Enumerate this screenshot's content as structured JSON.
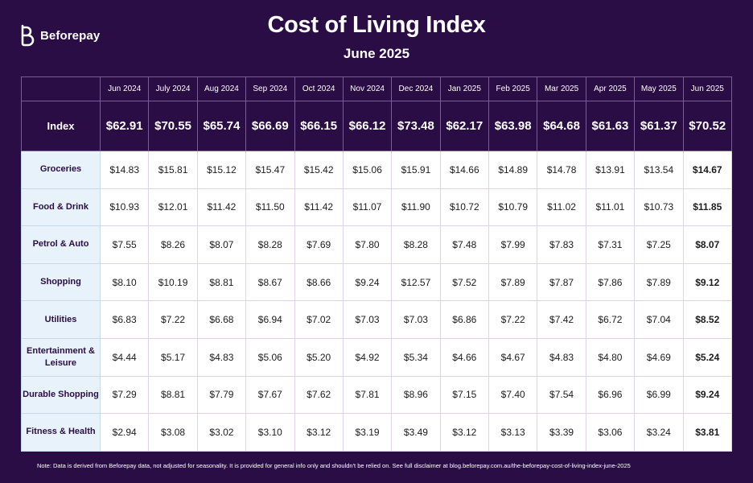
{
  "brand": {
    "name": "Beforepay",
    "logo_icon": "beforepay-b-logo-icon"
  },
  "title": "Cost of Living Index",
  "subtitle": "June 2025",
  "note": "Note: Data is derived from Beforepay data, not adjusted for seasonality. It is provided for general info only and shouldn't be relied on. See full disclaimer at blog.beforepay.com.au/the-beforepay-cost-of-living-index-june-2025",
  "colors": {
    "background": "#2a0d44",
    "row_label_bg": "#e7f2fb",
    "cell_bg": "#ffffff"
  },
  "chart_data": {
    "type": "table",
    "title": "Cost of Living Index",
    "subtitle": "June 2025",
    "columns": [
      "Jun 2024",
      "July 2024",
      "Aug 2024",
      "Sep 2024",
      "Oct 2024",
      "Nov 2024",
      "Dec 2024",
      "Jan 2025",
      "Feb 2025",
      "Mar 2025",
      "Apr 2025",
      "May 2025",
      "Jun 2025"
    ],
    "index_row": {
      "label": "Index",
      "values": [
        "$62.91",
        "$70.55",
        "$65.74",
        "$66.69",
        "$66.15",
        "$66.12",
        "$73.48",
        "$62.17",
        "$63.98",
        "$64.68",
        "$61.63",
        "$61.37",
        "$70.52"
      ]
    },
    "rows": [
      {
        "label": "Groceries",
        "values": [
          "$14.83",
          "$15.81",
          "$15.12",
          "$15.47",
          "$15.42",
          "$15.06",
          "$15.91",
          "$14.66",
          "$14.89",
          "$14.78",
          "$13.91",
          "$13.54",
          "$14.67"
        ]
      },
      {
        "label": "Food & Drink",
        "values": [
          "$10.93",
          "$12.01",
          "$11.42",
          "$11.50",
          "$11.42",
          "$11.07",
          "$11.90",
          "$10.72",
          "$10.79",
          "$11.02",
          "$11.01",
          "$10.73",
          "$11.85"
        ]
      },
      {
        "label": "Petrol & Auto",
        "values": [
          "$7.55",
          "$8.26",
          "$8.07",
          "$8.28",
          "$7.69",
          "$7.80",
          "$8.28",
          "$7.48",
          "$7.99",
          "$7.83",
          "$7.31",
          "$7.25",
          "$8.07"
        ]
      },
      {
        "label": "Shopping",
        "values": [
          "$8.10",
          "$10.19",
          "$8.81",
          "$8.67",
          "$8.66",
          "$9.24",
          "$12.57",
          "$7.52",
          "$7.89",
          "$7.87",
          "$7.86",
          "$7.89",
          "$9.12"
        ]
      },
      {
        "label": "Utilities",
        "values": [
          "$6.83",
          "$7.22",
          "$6.68",
          "$6.94",
          "$7.02",
          "$7.03",
          "$7.03",
          "$6.86",
          "$7.22",
          "$7.42",
          "$6.72",
          "$7.04",
          "$8.52"
        ]
      },
      {
        "label": "Entertainment & Leisure",
        "values": [
          "$4.44",
          "$5.17",
          "$4.83",
          "$5.06",
          "$5.20",
          "$4.92",
          "$5.34",
          "$4.66",
          "$4.67",
          "$4.83",
          "$4.80",
          "$4.69",
          "$5.24"
        ]
      },
      {
        "label": "Durable Shopping",
        "values": [
          "$7.29",
          "$8.81",
          "$7.79",
          "$7.67",
          "$7.62",
          "$7.81",
          "$8.96",
          "$7.15",
          "$7.40",
          "$7.54",
          "$6.96",
          "$6.99",
          "$9.24"
        ]
      },
      {
        "label": "Fitness & Health",
        "values": [
          "$2.94",
          "$3.08",
          "$3.02",
          "$3.10",
          "$3.12",
          "$3.19",
          "$3.49",
          "$3.12",
          "$3.13",
          "$3.39",
          "$3.06",
          "$3.24",
          "$3.81"
        ]
      }
    ]
  }
}
